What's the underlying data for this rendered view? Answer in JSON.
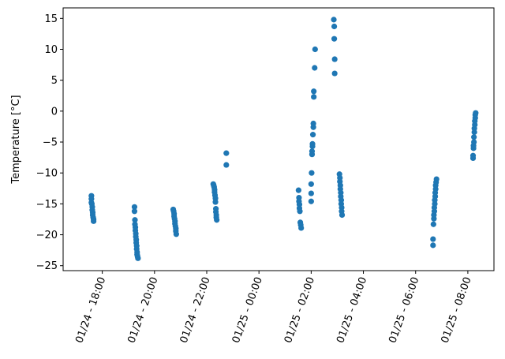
{
  "chart_data": {
    "type": "scatter",
    "title": "",
    "xlabel": "",
    "ylabel": "Temperature [°C]",
    "x_axis_type": "datetime",
    "xlim": [
      "2024-01-24T16:30",
      "2024-01-25T09:00"
    ],
    "ylim": [
      -25.8,
      16.7
    ],
    "x_ticks": [
      {
        "value": "2024-01-24T18:00",
        "label": "01/24 - 18:00"
      },
      {
        "value": "2024-01-24T20:00",
        "label": "01/24 - 20:00"
      },
      {
        "value": "2024-01-24T22:00",
        "label": "01/24 - 22:00"
      },
      {
        "value": "2024-01-25T00:00",
        "label": "01/25 - 00:00"
      },
      {
        "value": "2024-01-25T02:00",
        "label": "01/25 - 02:00"
      },
      {
        "value": "2024-01-25T04:00",
        "label": "01/25 - 04:00"
      },
      {
        "value": "2024-01-25T06:00",
        "label": "01/25 - 06:00"
      },
      {
        "value": "2024-01-25T08:00",
        "label": "01/25 - 08:00"
      }
    ],
    "y_ticks": [
      -25,
      -20,
      -15,
      -10,
      -5,
      0,
      5,
      10,
      15
    ],
    "x_tick_rotation": 70,
    "grid": false,
    "legend": "none",
    "marker_color": "#1f77b4",
    "series": [
      {
        "points": [
          {
            "x": "2024-01-24T17:35",
            "y": -13.7
          },
          {
            "x": "2024-01-24T17:35",
            "y": -14.2
          },
          {
            "x": "2024-01-24T17:35",
            "y": -14.8
          },
          {
            "x": "2024-01-24T17:36",
            "y": -15.0
          },
          {
            "x": "2024-01-24T17:37",
            "y": -15.5
          },
          {
            "x": "2024-01-24T17:37",
            "y": -16.0
          },
          {
            "x": "2024-01-24T17:38",
            "y": -16.4
          },
          {
            "x": "2024-01-24T17:38",
            "y": -16.8
          },
          {
            "x": "2024-01-24T17:39",
            "y": -17.2
          },
          {
            "x": "2024-01-24T17:40",
            "y": -17.5
          },
          {
            "x": "2024-01-24T17:40",
            "y": -17.8
          },
          {
            "x": "2024-01-24T19:14",
            "y": -15.5
          },
          {
            "x": "2024-01-24T19:14",
            "y": -16.2
          },
          {
            "x": "2024-01-24T19:15",
            "y": -17.6
          },
          {
            "x": "2024-01-24T19:15",
            "y": -18.3
          },
          {
            "x": "2024-01-24T19:16",
            "y": -18.8
          },
          {
            "x": "2024-01-24T19:16",
            "y": -19.3
          },
          {
            "x": "2024-01-24T19:17",
            "y": -19.8
          },
          {
            "x": "2024-01-24T19:17",
            "y": -20.3
          },
          {
            "x": "2024-01-24T19:18",
            "y": -20.8
          },
          {
            "x": "2024-01-24T19:18",
            "y": -21.3
          },
          {
            "x": "2024-01-24T19:19",
            "y": -21.8
          },
          {
            "x": "2024-01-24T19:19",
            "y": -22.3
          },
          {
            "x": "2024-01-24T19:20",
            "y": -22.8
          },
          {
            "x": "2024-01-24T19:20",
            "y": -23.2
          },
          {
            "x": "2024-01-24T19:21",
            "y": -23.5
          },
          {
            "x": "2024-01-24T19:22",
            "y": -23.8
          },
          {
            "x": "2024-01-24T20:43",
            "y": -15.9
          },
          {
            "x": "2024-01-24T20:44",
            "y": -16.2
          },
          {
            "x": "2024-01-24T20:45",
            "y": -16.6
          },
          {
            "x": "2024-01-24T20:45",
            "y": -17.0
          },
          {
            "x": "2024-01-24T20:46",
            "y": -17.4
          },
          {
            "x": "2024-01-24T20:47",
            "y": -17.8
          },
          {
            "x": "2024-01-24T20:47",
            "y": -18.2
          },
          {
            "x": "2024-01-24T20:48",
            "y": -18.6
          },
          {
            "x": "2024-01-24T20:49",
            "y": -19.0
          },
          {
            "x": "2024-01-24T20:49",
            "y": -19.4
          },
          {
            "x": "2024-01-24T20:50",
            "y": -19.9
          },
          {
            "x": "2024-01-24T22:15",
            "y": -11.8
          },
          {
            "x": "2024-01-24T22:16",
            "y": -12.0
          },
          {
            "x": "2024-01-24T22:17",
            "y": -12.3
          },
          {
            "x": "2024-01-24T22:18",
            "y": -12.7
          },
          {
            "x": "2024-01-24T22:18",
            "y": -13.1
          },
          {
            "x": "2024-01-24T22:19",
            "y": -13.6
          },
          {
            "x": "2024-01-24T22:20",
            "y": -14.1
          },
          {
            "x": "2024-01-24T22:20",
            "y": -14.7
          },
          {
            "x": "2024-01-24T22:21",
            "y": -15.8
          },
          {
            "x": "2024-01-24T22:21",
            "y": -16.3
          },
          {
            "x": "2024-01-24T22:22",
            "y": -16.8
          },
          {
            "x": "2024-01-24T22:22",
            "y": -17.2
          },
          {
            "x": "2024-01-24T22:23",
            "y": -17.6
          },
          {
            "x": "2024-01-24T22:45",
            "y": -6.8
          },
          {
            "x": "2024-01-24T22:45",
            "y": -8.7
          },
          {
            "x": "2024-01-25T01:31",
            "y": -12.8
          },
          {
            "x": "2024-01-25T01:32",
            "y": -14.0
          },
          {
            "x": "2024-01-25T01:32",
            "y": -14.6
          },
          {
            "x": "2024-01-25T01:33",
            "y": -15.1
          },
          {
            "x": "2024-01-25T01:33",
            "y": -15.7
          },
          {
            "x": "2024-01-25T01:34",
            "y": -16.2
          },
          {
            "x": "2024-01-25T01:35",
            "y": -18.0
          },
          {
            "x": "2024-01-25T01:36",
            "y": -18.4
          },
          {
            "x": "2024-01-25T01:37",
            "y": -18.9
          },
          {
            "x": "2024-01-25T02:00",
            "y": -11.8
          },
          {
            "x": "2024-01-25T02:00",
            "y": -13.3
          },
          {
            "x": "2024-01-25T02:00",
            "y": -14.6
          },
          {
            "x": "2024-01-25T02:01",
            "y": -10.0
          },
          {
            "x": "2024-01-25T02:02",
            "y": -7.0
          },
          {
            "x": "2024-01-25T02:02",
            "y": -6.5
          },
          {
            "x": "2024-01-25T02:03",
            "y": -5.7
          },
          {
            "x": "2024-01-25T02:03",
            "y": -5.3
          },
          {
            "x": "2024-01-25T02:04",
            "y": -3.8
          },
          {
            "x": "2024-01-25T02:05",
            "y": -2.6
          },
          {
            "x": "2024-01-25T02:05",
            "y": -2.0
          },
          {
            "x": "2024-01-25T02:06",
            "y": 2.3
          },
          {
            "x": "2024-01-25T02:06",
            "y": 3.2
          },
          {
            "x": "2024-01-25T02:08",
            "y": 7.0
          },
          {
            "x": "2024-01-25T02:09",
            "y": 10.0
          },
          {
            "x": "2024-01-25T02:52",
            "y": 14.8
          },
          {
            "x": "2024-01-25T02:53",
            "y": 13.7
          },
          {
            "x": "2024-01-25T02:53",
            "y": 11.7
          },
          {
            "x": "2024-01-25T02:54",
            "y": 8.4
          },
          {
            "x": "2024-01-25T02:54",
            "y": 6.1
          },
          {
            "x": "2024-01-25T03:05",
            "y": -10.2
          },
          {
            "x": "2024-01-25T03:06",
            "y": -10.8
          },
          {
            "x": "2024-01-25T03:06",
            "y": -11.4
          },
          {
            "x": "2024-01-25T03:07",
            "y": -12.0
          },
          {
            "x": "2024-01-25T03:07",
            "y": -12.6
          },
          {
            "x": "2024-01-25T03:08",
            "y": -13.2
          },
          {
            "x": "2024-01-25T03:08",
            "y": -13.8
          },
          {
            "x": "2024-01-25T03:09",
            "y": -14.4
          },
          {
            "x": "2024-01-25T03:09",
            "y": -15.0
          },
          {
            "x": "2024-01-25T03:10",
            "y": -15.6
          },
          {
            "x": "2024-01-25T03:10",
            "y": -16.2
          },
          {
            "x": "2024-01-25T03:11",
            "y": -16.8
          },
          {
            "x": "2024-01-25T06:40",
            "y": -21.7
          },
          {
            "x": "2024-01-25T06:40",
            "y": -20.7
          },
          {
            "x": "2024-01-25T06:41",
            "y": -18.3
          },
          {
            "x": "2024-01-25T06:42",
            "y": -17.4
          },
          {
            "x": "2024-01-25T06:42",
            "y": -16.8
          },
          {
            "x": "2024-01-25T06:43",
            "y": -16.2
          },
          {
            "x": "2024-01-25T06:43",
            "y": -15.6
          },
          {
            "x": "2024-01-25T06:44",
            "y": -15.0
          },
          {
            "x": "2024-01-25T06:44",
            "y": -14.4
          },
          {
            "x": "2024-01-25T06:45",
            "y": -13.8
          },
          {
            "x": "2024-01-25T06:45",
            "y": -13.2
          },
          {
            "x": "2024-01-25T06:46",
            "y": -12.6
          },
          {
            "x": "2024-01-25T06:46",
            "y": -12.0
          },
          {
            "x": "2024-01-25T06:47",
            "y": -11.5
          },
          {
            "x": "2024-01-25T06:48",
            "y": -11.0
          },
          {
            "x": "2024-01-25T08:12",
            "y": -7.6
          },
          {
            "x": "2024-01-25T08:12",
            "y": -7.2
          },
          {
            "x": "2024-01-25T08:13",
            "y": -6.0
          },
          {
            "x": "2024-01-25T08:13",
            "y": -5.6
          },
          {
            "x": "2024-01-25T08:14",
            "y": -5.0
          },
          {
            "x": "2024-01-25T08:14",
            "y": -4.2
          },
          {
            "x": "2024-01-25T08:15",
            "y": -3.4
          },
          {
            "x": "2024-01-25T08:15",
            "y": -2.8
          },
          {
            "x": "2024-01-25T08:16",
            "y": -2.2
          },
          {
            "x": "2024-01-25T08:16",
            "y": -1.6
          },
          {
            "x": "2024-01-25T08:17",
            "y": -1.1
          },
          {
            "x": "2024-01-25T08:17",
            "y": -0.6
          },
          {
            "x": "2024-01-25T08:18",
            "y": -0.3
          }
        ]
      }
    ]
  }
}
